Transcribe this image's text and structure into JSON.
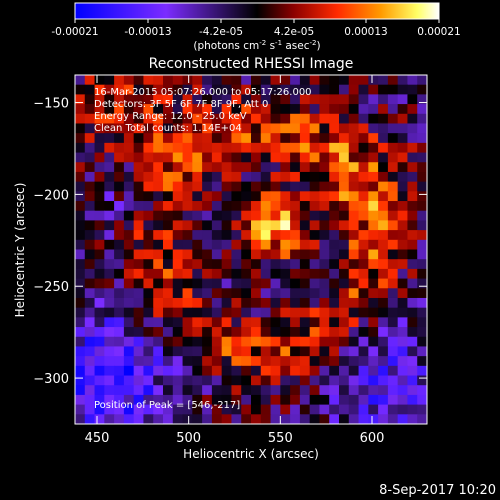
{
  "colorbar": {
    "tick_labels": [
      "-0.00021",
      "-0.00013",
      "-4.2e-05",
      "4.2e-05",
      "0.00013",
      "0.00021"
    ],
    "units_label": "(photons cm",
    "units_exp1": "-2",
    "units_mid": " s",
    "units_exp2": "-1",
    "units_end": " asec",
    "units_exp3": "-2",
    "units_close": ")"
  },
  "plot": {
    "title": "Reconstructed RHESSI Image",
    "info_lines": [
      "16-Mar-2015 05:07:26.000 to 05:17:26.000",
      "Detectors: 3F 5F 6F 7F 8F 9F, Att 0",
      "Energy Range: 12.0 - 25.0 keV",
      "Clean    Total counts: 1.14E+04"
    ],
    "peak_label": "Position of Peak = [546,-217]"
  },
  "footer": {
    "timestamp": "8-Sep-2017 10:20"
  },
  "chart_data": {
    "type": "heatmap",
    "title": "Reconstructed RHESSI Image",
    "xlabel": "Heliocentric X (arcsec)",
    "ylabel": "Heliocentric Y (arcsec)",
    "xlim": [
      438,
      630
    ],
    "ylim": [
      -325,
      -135
    ],
    "x_ticks": [
      450,
      500,
      550,
      600
    ],
    "y_ticks": [
      -150,
      -200,
      -250,
      -300
    ],
    "colorbar_range": [
      -0.00021,
      0.00021
    ],
    "colormap": [
      "#0000ff",
      "#7b2cff",
      "#000000",
      "#8b0000",
      "#ff2a00",
      "#ff9a00",
      "#ffff66",
      "#ffffff"
    ],
    "peak": [
      546,
      -217
    ]
  }
}
